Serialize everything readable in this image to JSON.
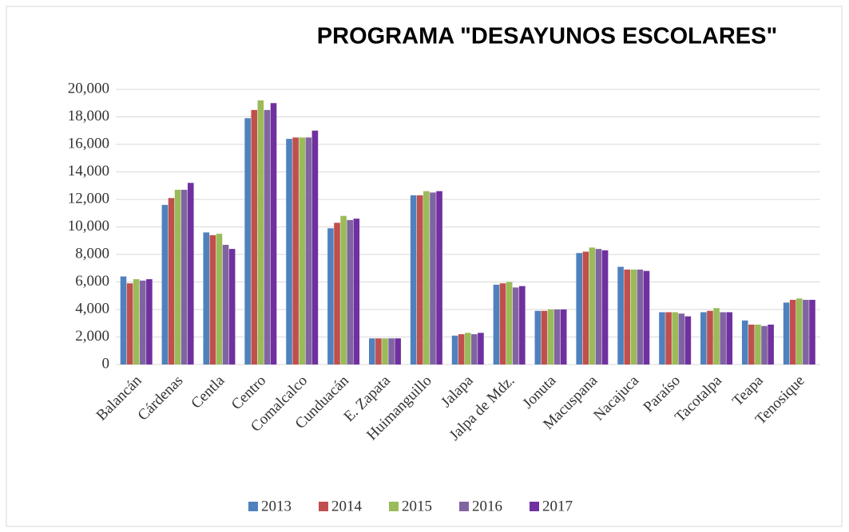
{
  "chart_data": {
    "type": "bar",
    "title": "PROGRAMA \"DESAYUNOS ESCOLARES\"",
    "categories": [
      "Balancán",
      "Cárdenas",
      "Centla",
      "Centro",
      "Comalcalco",
      "Cunduacán",
      "E. Zapata",
      "Huimanguillo",
      "Jalapa",
      "Jalpa de Mdz.",
      "Jonuta",
      "Macuspana",
      "Nacajuca",
      "Paraíso",
      "Tacotalpa",
      "Teapa",
      "Tenosique"
    ],
    "series": [
      {
        "name": "2013",
        "color": "#4f81bd",
        "values": [
          6400,
          11600,
          9600,
          17900,
          16400,
          9900,
          1900,
          12300,
          2100,
          5800,
          3900,
          8100,
          7100,
          3800,
          3800,
          3200,
          4500
        ]
      },
      {
        "name": "2014",
        "color": "#c0504d",
        "values": [
          5900,
          12100,
          9400,
          18500,
          16500,
          10300,
          1900,
          12300,
          2200,
          5900,
          3900,
          8200,
          6900,
          3800,
          3900,
          2900,
          4700
        ]
      },
      {
        "name": "2015",
        "color": "#9bbb59",
        "values": [
          6200,
          12700,
          9500,
          19200,
          16500,
          10800,
          1900,
          12600,
          2300,
          6000,
          4000,
          8500,
          6900,
          3800,
          4100,
          2900,
          4800
        ]
      },
      {
        "name": "2016",
        "color": "#8064a2",
        "values": [
          6100,
          12700,
          8700,
          18500,
          16500,
          10500,
          1900,
          12500,
          2200,
          5600,
          4000,
          8400,
          6900,
          3700,
          3800,
          2800,
          4700
        ]
      },
      {
        "name": "2017",
        "color": "#7030a0",
        "values": [
          6200,
          13200,
          8400,
          19000,
          17000,
          10600,
          1900,
          12600,
          2300,
          5700,
          4000,
          8300,
          6800,
          3500,
          3800,
          2900,
          4700
        ]
      }
    ],
    "ylim": [
      0,
      20000
    ],
    "yticks": [
      0,
      {
        "value": 2000,
        "label": "2,000"
      },
      {
        "value": 4000,
        "label": "4,000"
      },
      {
        "value": 6000,
        "label": "6,000"
      },
      {
        "value": 8000,
        "label": "8,000"
      },
      {
        "value": 10000,
        "label": "10,000"
      },
      {
        "value": 12000,
        "label": "12,000"
      },
      {
        "value": 14000,
        "label": "14,000"
      },
      {
        "value": 16000,
        "label": "16,000"
      },
      {
        "value": 18000,
        "label": "18,000"
      },
      {
        "value": 20000,
        "label": "20,000"
      }
    ],
    "grid": true,
    "legend": "bottom"
  }
}
